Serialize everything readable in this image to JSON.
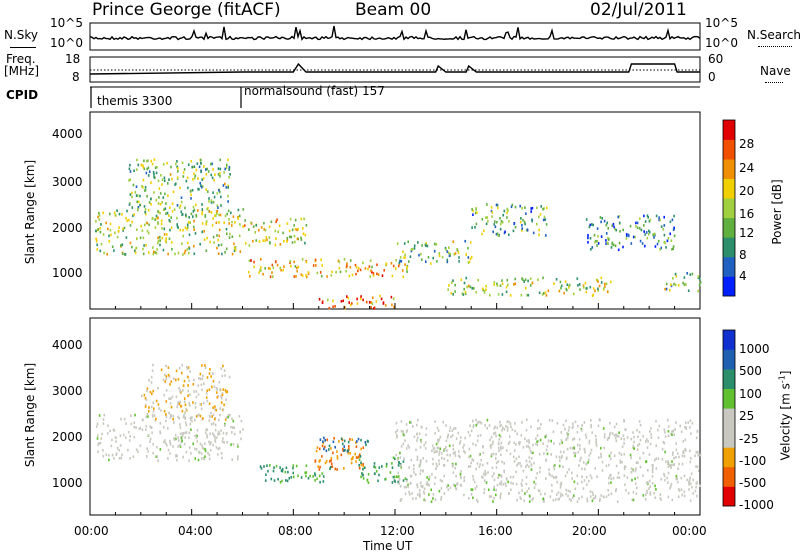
{
  "header": {
    "station": "Prince George (fitACF)",
    "beam": "Beam 00",
    "date": "02/Jul/2011"
  },
  "noise_panel": {
    "left_label": "N.Sky",
    "right_label": "N.Search",
    "left_ticks": [
      "10^5",
      "10^0"
    ],
    "right_ticks": [
      "10^5",
      "10^0"
    ]
  },
  "freq_panel": {
    "left_label_1": "Freq.",
    "left_label_2": "[MHz]",
    "right_label": "Nave",
    "left_ticks": [
      "18",
      "8"
    ],
    "right_ticks": [
      "60",
      "0"
    ]
  },
  "cpid_panel": {
    "label": "CPID",
    "programs": [
      {
        "name": "themis 3300",
        "start": "00:00",
        "end": "06:00"
      },
      {
        "name": "normalsound (fast) 157",
        "start": "06:00",
        "end": "24:00"
      }
    ]
  },
  "time_axis": {
    "label": "Time UT",
    "ticks": [
      "00:00",
      "04:00",
      "08:00",
      "12:00",
      "16:00",
      "20:00",
      "00:00"
    ]
  },
  "power_panel": {
    "ylabel": "Slant Range [km]",
    "yticks": [
      "4000",
      "3000",
      "2000",
      "1000"
    ],
    "colorbar_label": "Power [dB]",
    "colorbar_ticks": [
      "28",
      "24",
      "20",
      "16",
      "12",
      "8",
      "4"
    ],
    "colors": [
      "#0020ff",
      "#2060c0",
      "#2a8f6a",
      "#60b040",
      "#a0d040",
      "#f0d000",
      "#f09000",
      "#f05000",
      "#e00000"
    ]
  },
  "velocity_panel": {
    "ylabel": "Slant Range [km]",
    "yticks": [
      "4000",
      "3000",
      "2000",
      "1000"
    ],
    "colorbar_label": "Velocity [m s",
    "colorbar_sup": "-1",
    "colorbar_label_end": "]",
    "colorbar_ticks": [
      "1000",
      "500",
      "100",
      "25",
      "-25",
      "-100",
      "-500",
      "-1000"
    ],
    "colors": [
      "#1030d0",
      "#2060b0",
      "#2a8f6a",
      "#60c030",
      "#c8c8c0",
      "#c8c8c0",
      "#f0a000",
      "#f06000",
      "#e00000"
    ]
  },
  "chart_data": {
    "type": "heatmap",
    "x_range_hours": [
      0,
      24
    ],
    "y_range_km": [
      180,
      4500
    ],
    "power_regions_dB": [
      {
        "t": [
          0.2,
          6.0
        ],
        "r": [
          1400,
          2400
        ],
        "value": 16
      },
      {
        "t": [
          1.5,
          5.5
        ],
        "r": [
          2300,
          3500
        ],
        "value": 14
      },
      {
        "t": [
          6.0,
          8.5
        ],
        "r": [
          1600,
          2200
        ],
        "value": 18
      },
      {
        "t": [
          6.2,
          12.5
        ],
        "r": [
          900,
          1300
        ],
        "value": 20
      },
      {
        "t": [
          9.0,
          12.0
        ],
        "r": [
          200,
          500
        ],
        "value": 24
      },
      {
        "t": [
          12.0,
          15.0
        ],
        "r": [
          1200,
          1700
        ],
        "value": 14
      },
      {
        "t": [
          14.0,
          20.5
        ],
        "r": [
          500,
          900
        ],
        "value": 16
      },
      {
        "t": [
          15.0,
          18.0
        ],
        "r": [
          1800,
          2500
        ],
        "value": 12
      },
      {
        "t": [
          19.5,
          23.0
        ],
        "r": [
          1500,
          2300
        ],
        "value": 10
      },
      {
        "t": [
          22.5,
          24.0
        ],
        "r": [
          600,
          1000
        ],
        "value": 14
      }
    ],
    "velocity_regions_ms": [
      {
        "t": [
          0.2,
          6.0
        ],
        "r": [
          1400,
          2400
        ],
        "value": 0
      },
      {
        "t": [
          2.0,
          5.5
        ],
        "r": [
          2300,
          3500
        ],
        "value": -100
      },
      {
        "t": [
          6.5,
          9.5
        ],
        "r": [
          900,
          1300
        ],
        "value": 100
      },
      {
        "t": [
          8.8,
          10.8
        ],
        "r": [
          1200,
          1900
        ],
        "value": -500
      },
      {
        "t": [
          9.0,
          11.0
        ],
        "r": [
          1600,
          1900
        ],
        "value": 500
      },
      {
        "t": [
          10.5,
          12.5
        ],
        "r": [
          900,
          1500
        ],
        "value": 100
      },
      {
        "t": [
          12.0,
          24.0
        ],
        "r": [
          500,
          2300
        ],
        "value": 0
      }
    ]
  }
}
